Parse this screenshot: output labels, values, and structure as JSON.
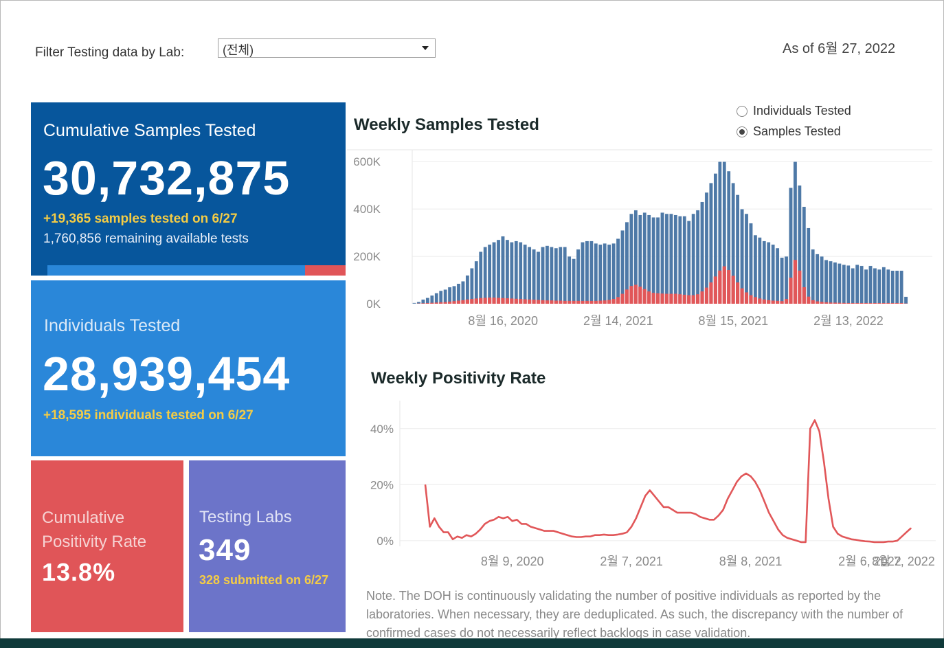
{
  "filter": {
    "label": "Filter Testing data by Lab:",
    "value": "(전체)"
  },
  "as_of": "As of 6월 27, 2022",
  "tiles": {
    "cumulative_samples": {
      "title": "Cumulative Samples Tested",
      "value": "30,732,875",
      "delta": "+19,365 samples tested on 6/27",
      "remaining": "1,760,856 remaining available tests",
      "progress_fraction": 0.864,
      "bar_fill_color": "#2a87d9",
      "bar_rest_color": "#e05558"
    },
    "individuals": {
      "title": "Individuals Tested",
      "value": "28,939,454",
      "delta": "+18,595  individuals  tested on 6/27"
    },
    "positivity": {
      "title_line1": "Cumulative",
      "title_line2": "Positivity Rate",
      "value": "13.8%"
    },
    "labs": {
      "title": "Testing Labs",
      "value": "349",
      "delta": "328 submitted on 6/27"
    }
  },
  "colors": {
    "samples": "#4e79a7",
    "positives": "#e15759",
    "tile_dark_blue": "#07569c",
    "tile_blue": "#2a87d9",
    "tile_red": "#e05558",
    "tile_purple": "#6c74c9",
    "highlight": "#f4cc45"
  },
  "radio": {
    "options": [
      "Individuals Tested",
      "Samples Tested"
    ],
    "selected": "Samples Tested"
  },
  "chart_data": [
    {
      "type": "bar",
      "title": "Weekly Samples Tested",
      "ylim": [
        0,
        650000
      ],
      "yticks": [
        {
          "value": 0,
          "label": "0K"
        },
        {
          "value": 200000,
          "label": "200K"
        },
        {
          "value": 400000,
          "label": "400K"
        },
        {
          "value": 600000,
          "label": "600K"
        }
      ],
      "xticks": [
        {
          "index": 20,
          "label": "8월 16, 2020"
        },
        {
          "index": 46,
          "label": "2월 14, 2021"
        },
        {
          "index": 72,
          "label": "8월 15, 2021"
        },
        {
          "index": 98,
          "label": "2월 13, 2022"
        }
      ],
      "grid": true,
      "series": [
        {
          "name": "Samples Tested",
          "color": "#4e79a7",
          "values": [
            4000,
            8000,
            18000,
            25000,
            35000,
            45000,
            55000,
            60000,
            70000,
            75000,
            85000,
            95000,
            120000,
            150000,
            180000,
            220000,
            240000,
            250000,
            260000,
            270000,
            285000,
            270000,
            260000,
            265000,
            260000,
            250000,
            240000,
            230000,
            220000,
            240000,
            245000,
            240000,
            235000,
            240000,
            240000,
            200000,
            190000,
            230000,
            260000,
            265000,
            265000,
            255000,
            250000,
            255000,
            250000,
            255000,
            275000,
            310000,
            345000,
            380000,
            395000,
            375000,
            385000,
            375000,
            365000,
            365000,
            385000,
            380000,
            380000,
            375000,
            370000,
            370000,
            350000,
            380000,
            395000,
            430000,
            470000,
            510000,
            550000,
            600000,
            600000,
            560000,
            510000,
            460000,
            400000,
            380000,
            340000,
            290000,
            280000,
            265000,
            260000,
            250000,
            235000,
            195000,
            200000,
            490000,
            600000,
            500000,
            410000,
            320000,
            230000,
            210000,
            200000,
            185000,
            180000,
            175000,
            170000,
            165000,
            162000,
            150000,
            165000,
            160000,
            145000,
            160000,
            150000,
            145000,
            155000,
            145000,
            140000,
            140000,
            140000,
            30000
          ]
        },
        {
          "name": "Positive Individuals",
          "color": "#e15759",
          "values": [
            0,
            1000,
            2000,
            3000,
            4000,
            5000,
            6000,
            7000,
            9000,
            11000,
            13000,
            15000,
            18000,
            20000,
            22000,
            24000,
            25000,
            26000,
            26000,
            25000,
            24000,
            23000,
            22000,
            21000,
            20000,
            19000,
            18000,
            17000,
            16000,
            15000,
            14000,
            14000,
            13000,
            13000,
            12000,
            12000,
            12000,
            12000,
            12000,
            12000,
            12000,
            12000,
            13000,
            14000,
            16000,
            20000,
            28000,
            42000,
            60000,
            75000,
            80000,
            72000,
            62000,
            52000,
            46000,
            44000,
            43000,
            42000,
            42000,
            42000,
            40000,
            38000,
            36000,
            36000,
            40000,
            52000,
            68000,
            90000,
            115000,
            140000,
            158000,
            142000,
            118000,
            90000,
            65000,
            48000,
            36000,
            28000,
            22000,
            18000,
            15000,
            13000,
            12000,
            11000,
            20000,
            110000,
            185000,
            140000,
            70000,
            30000,
            15000,
            10000,
            8000,
            6000,
            5000,
            4500,
            4000,
            3500,
            3000,
            3000,
            3000,
            3000,
            3000,
            3000,
            3000,
            3000,
            3000,
            3000,
            3000,
            3000,
            3000,
            1000
          ]
        }
      ]
    },
    {
      "type": "line",
      "title": "Weekly Positivity Rate",
      "ylim": [
        -2,
        50
      ],
      "yticks": [
        {
          "value": 0,
          "label": "0%"
        },
        {
          "value": 20,
          "label": "20%"
        },
        {
          "value": 40,
          "label": "40%"
        }
      ],
      "xticks": [
        {
          "index": 19,
          "label": "8월 9, 2020"
        },
        {
          "index": 45,
          "label": "2월 7, 2021"
        },
        {
          "index": 71,
          "label": "8월 8, 2021"
        },
        {
          "index": 97,
          "label": "2월 6, 2022"
        },
        {
          "index": 123,
          "label": "8월 7, 2022"
        }
      ],
      "grid": true,
      "series": [
        {
          "name": "Positivity Rate",
          "color": "#e15759",
          "values": [
            20,
            5,
            8,
            5,
            3,
            3,
            0.5,
            1.5,
            1,
            2,
            1.5,
            2.5,
            4,
            6,
            7,
            7.5,
            8.5,
            8,
            8.5,
            7,
            7.5,
            6,
            6,
            5,
            4.5,
            4,
            3.5,
            3.5,
            3.5,
            3,
            2.5,
            2,
            1.5,
            1.3,
            1.3,
            1.5,
            1.5,
            2,
            2,
            2.2,
            2,
            2,
            2.2,
            2.5,
            3,
            5,
            8,
            12,
            16,
            18,
            16,
            14,
            12,
            12,
            11,
            10,
            10,
            10,
            10,
            9.5,
            8.5,
            8,
            7.5,
            7.5,
            9,
            11,
            15,
            18,
            21,
            23,
            24,
            23,
            21,
            18,
            14,
            10,
            7,
            4,
            2,
            1,
            0.5,
            0,
            -0.5,
            -0.5,
            40,
            43,
            39,
            28,
            15,
            5,
            2.5,
            1.5,
            1,
            0.5,
            0.3,
            0,
            -0.2,
            -0.3,
            -0.5,
            -0.5,
            -0.5,
            -0.3,
            -0.3,
            0,
            1.5,
            3,
            4.5
          ]
        }
      ]
    }
  ],
  "note": "Note. The DOH is continuously validating the number of positive individuals as reported by the laboratories. When necessary, they are deduplicated. As such, the discrepancy with the number of confirmed cases do not necessarily reflect backlogs in case validation."
}
